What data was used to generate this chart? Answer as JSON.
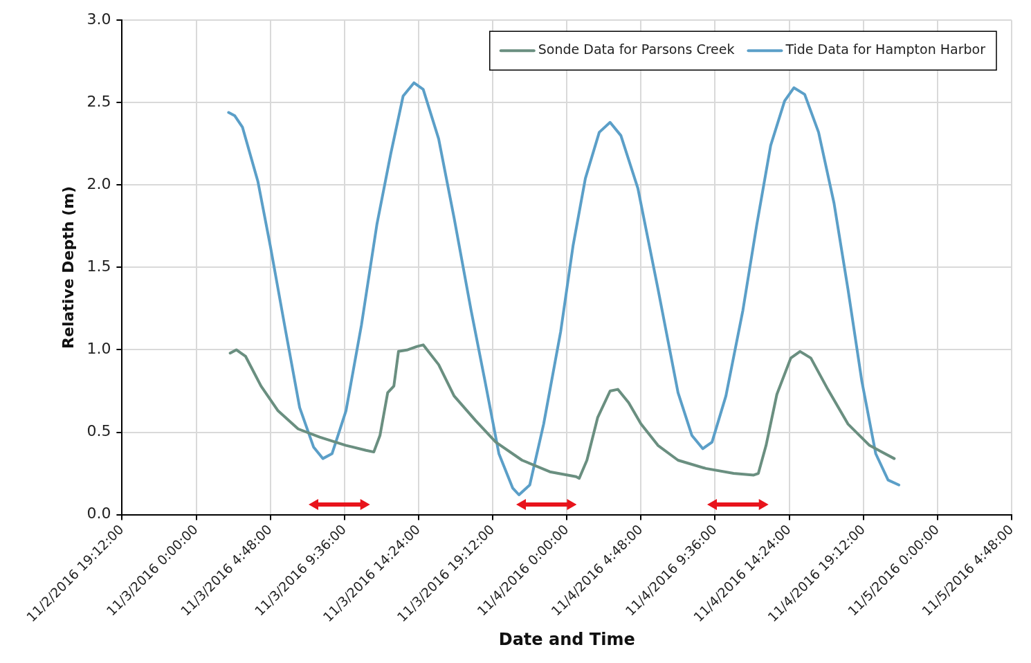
{
  "chart_data": {
    "type": "line",
    "xlabel": "Date and Time",
    "ylabel": "Relative Depth (m)",
    "xlim": [
      "2016-11-02T19:12",
      "2016-11-05T04:48"
    ],
    "xticks": [
      {
        "value": "2016-11-02T19:12",
        "label": "11/2/2016 19:12:00"
      },
      {
        "value": "2016-11-03T00:00",
        "label": "11/3/2016 0:00:00"
      },
      {
        "value": "2016-11-03T04:48",
        "label": "11/3/2016 4:48:00"
      },
      {
        "value": "2016-11-03T09:36",
        "label": "11/3/2016 9:36:00"
      },
      {
        "value": "2016-11-03T14:24",
        "label": "11/3/2016 14:24:00"
      },
      {
        "value": "2016-11-03T19:12",
        "label": "11/3/2016 19:12:00"
      },
      {
        "value": "2016-11-04T00:00",
        "label": "11/4/2016 0:00:00"
      },
      {
        "value": "2016-11-04T04:48",
        "label": "11/4/2016 4:48:00"
      },
      {
        "value": "2016-11-04T09:36",
        "label": "11/4/2016 9:36:00"
      },
      {
        "value": "2016-11-04T14:24",
        "label": "11/4/2016 14:24:00"
      },
      {
        "value": "2016-11-04T19:12",
        "label": "11/4/2016 19:12:00"
      },
      {
        "value": "2016-11-05T00:00",
        "label": "11/5/2016 0:00:00"
      },
      {
        "value": "2016-11-05T04:48",
        "label": "11/5/2016 4:48:00"
      }
    ],
    "ylim": [
      0,
      3
    ],
    "yticks": [
      {
        "value": 0,
        "label": "0.0"
      },
      {
        "value": 0.5,
        "label": "0.5"
      },
      {
        "value": 1,
        "label": "1.0"
      },
      {
        "value": 1.5,
        "label": "1.5"
      },
      {
        "value": 2,
        "label": "2.0"
      },
      {
        "value": 2.5,
        "label": "2.5"
      },
      {
        "value": 3,
        "label": "3.0"
      }
    ],
    "grid": true,
    "legend": "top right",
    "marker": "none",
    "line_style": "solid",
    "series": [
      {
        "name": "Sonde Data for Parsons Creek",
        "color": "#6a8f80",
        "x": [
          "2016-11-03T02:12",
          "2016-11-03T02:36",
          "2016-11-03T03:12",
          "2016-11-03T04:12",
          "2016-11-03T05:18",
          "2016-11-03T06:36",
          "2016-11-03T08:00",
          "2016-11-03T09:42",
          "2016-11-03T11:00",
          "2016-11-03T11:30",
          "2016-11-03T11:54",
          "2016-11-03T12:24",
          "2016-11-03T12:48",
          "2016-11-03T13:06",
          "2016-11-03T13:42",
          "2016-11-03T14:18",
          "2016-11-03T14:42",
          "2016-11-03T15:42",
          "2016-11-03T16:42",
          "2016-11-03T18:06",
          "2016-11-03T19:24",
          "2016-11-03T21:06",
          "2016-11-03T22:54",
          "2016-11-04T00:36",
          "2016-11-04T00:48",
          "2016-11-04T01:18",
          "2016-11-04T02:00",
          "2016-11-04T02:48",
          "2016-11-04T03:18",
          "2016-11-04T04:00",
          "2016-11-04T04:48",
          "2016-11-04T05:54",
          "2016-11-04T07:12",
          "2016-11-04T09:00",
          "2016-11-04T10:48",
          "2016-11-04T12:06",
          "2016-11-04T12:24",
          "2016-11-04T12:54",
          "2016-11-04T13:36",
          "2016-11-04T14:30",
          "2016-11-04T15:06",
          "2016-11-04T15:48",
          "2016-11-04T16:54",
          "2016-11-04T18:12",
          "2016-11-04T19:36",
          "2016-11-04T21:12"
        ],
        "values": [
          0.98,
          1.0,
          0.96,
          0.78,
          0.63,
          0.52,
          0.47,
          0.42,
          0.39,
          0.38,
          0.48,
          0.74,
          0.78,
          0.99,
          1.0,
          1.02,
          1.03,
          0.91,
          0.72,
          0.57,
          0.44,
          0.33,
          0.26,
          0.23,
          0.22,
          0.33,
          0.59,
          0.75,
          0.76,
          0.68,
          0.55,
          0.42,
          0.33,
          0.28,
          0.25,
          0.24,
          0.25,
          0.42,
          0.73,
          0.95,
          0.99,
          0.95,
          0.76,
          0.55,
          0.42,
          0.34
        ]
      },
      {
        "name": "Tide Data for Hampton Harbor",
        "color": "#5b9fc8",
        "x": [
          "2016-11-03T02:06",
          "2016-11-03T02:30",
          "2016-11-03T03:00",
          "2016-11-03T04:00",
          "2016-11-03T04:48",
          "2016-11-03T05:48",
          "2016-11-03T06:42",
          "2016-11-03T07:36",
          "2016-11-03T08:12",
          "2016-11-03T08:48",
          "2016-11-03T09:42",
          "2016-11-03T10:42",
          "2016-11-03T11:42",
          "2016-11-03T12:36",
          "2016-11-03T13:24",
          "2016-11-03T14:06",
          "2016-11-03T14:42",
          "2016-11-03T15:42",
          "2016-11-03T16:42",
          "2016-11-03T17:48",
          "2016-11-03T18:42",
          "2016-11-03T19:36",
          "2016-11-03T20:30",
          "2016-11-03T20:54",
          "2016-11-03T21:36",
          "2016-11-03T22:30",
          "2016-11-03T23:36",
          "2016-11-04T00:24",
          "2016-11-04T01:12",
          "2016-11-04T02:06",
          "2016-11-04T02:48",
          "2016-11-04T03:30",
          "2016-11-04T04:36",
          "2016-11-04T05:54",
          "2016-11-04T07:12",
          "2016-11-04T08:06",
          "2016-11-04T08:48",
          "2016-11-04T09:24",
          "2016-11-04T10:18",
          "2016-11-04T11:24",
          "2016-11-04T12:18",
          "2016-11-04T13:12",
          "2016-11-04T14:06",
          "2016-11-04T14:42",
          "2016-11-04T15:24",
          "2016-11-04T16:18",
          "2016-11-04T17:18",
          "2016-11-04T18:12",
          "2016-11-04T19:06",
          "2016-11-04T20:00",
          "2016-11-04T20:48",
          "2016-11-04T21:30"
        ],
        "values": [
          2.44,
          2.42,
          2.35,
          2.02,
          1.63,
          1.11,
          0.65,
          0.41,
          0.34,
          0.37,
          0.63,
          1.15,
          1.76,
          2.19,
          2.54,
          2.62,
          2.58,
          2.28,
          1.8,
          1.24,
          0.81,
          0.37,
          0.16,
          0.12,
          0.18,
          0.55,
          1.11,
          1.63,
          2.04,
          2.32,
          2.38,
          2.3,
          1.98,
          1.37,
          0.74,
          0.48,
          0.4,
          0.44,
          0.72,
          1.24,
          1.76,
          2.24,
          2.51,
          2.59,
          2.55,
          2.32,
          1.89,
          1.37,
          0.81,
          0.37,
          0.21,
          0.18
        ]
      }
    ]
  }
}
